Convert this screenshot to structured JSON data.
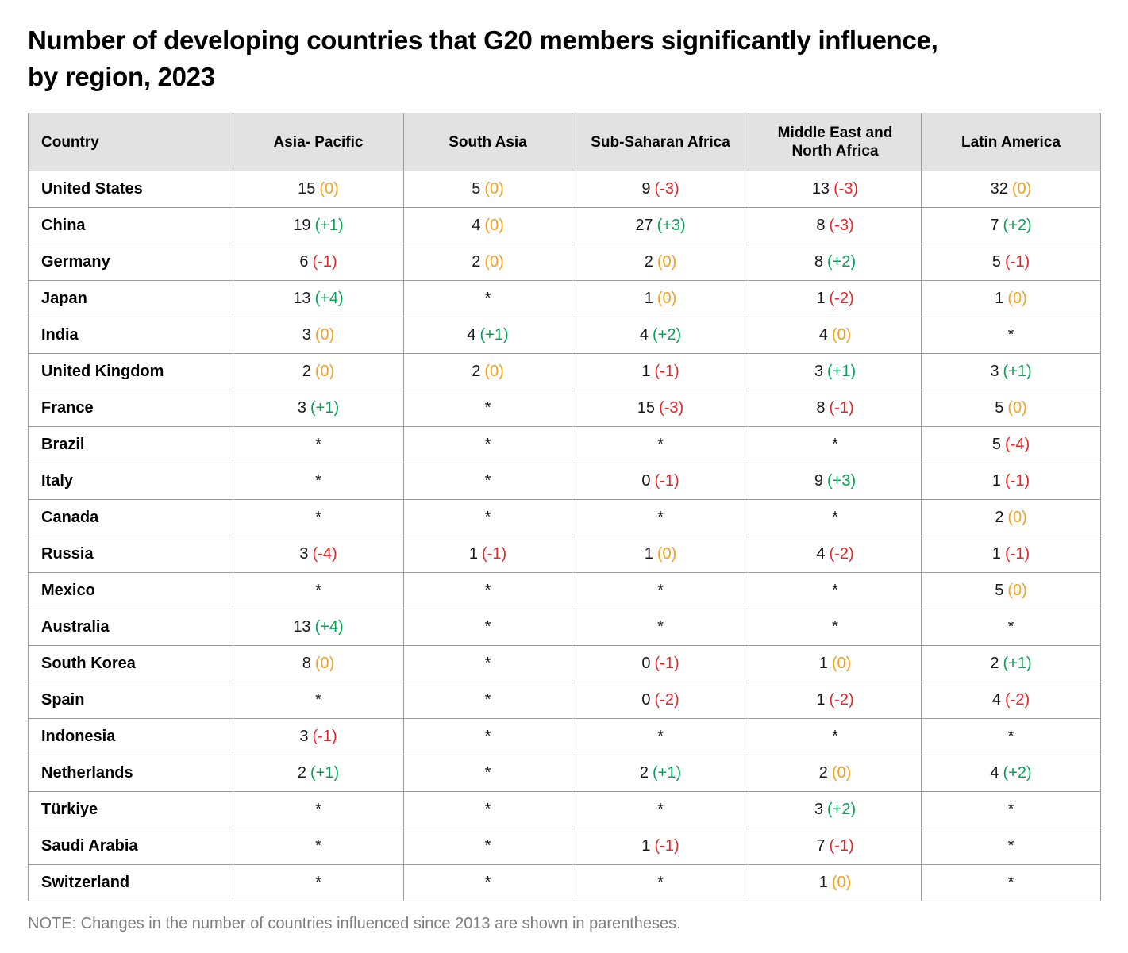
{
  "header": {
    "title_line1": "Number of developing countries that G20 members significantly influence,",
    "title_line2": "by region, 2023"
  },
  "note": "NOTE: Changes in the number of countries influenced since 2013 are shown in parentheses.",
  "colors": {
    "positive": "#00a551",
    "negative": "#ec2427",
    "zero": "#f5a01b",
    "header_bg": "#e2e2e2",
    "border": "#9b9b9b",
    "note_text": "#7d7d7d"
  },
  "chart_data": {
    "type": "table",
    "title": "Number of developing countries that G20 members significantly influence, by region, 2023",
    "columns": [
      "Country",
      "Asia- Pacific",
      "South Asia",
      "Sub-Saharan Africa",
      "Middle East and North Africa",
      "Latin America"
    ],
    "no_data_symbol": "*",
    "rows": [
      {
        "country": "United States",
        "cells": [
          {
            "v": "15",
            "c": "(0)",
            "t": "zero"
          },
          {
            "v": "5",
            "c": "(0)",
            "t": "zero"
          },
          {
            "v": "9",
            "c": "(-3)",
            "t": "neg"
          },
          {
            "v": "13",
            "c": "(-3)",
            "t": "neg"
          },
          {
            "v": "32",
            "c": "(0)",
            "t": "zero"
          }
        ]
      },
      {
        "country": "China",
        "cells": [
          {
            "v": "19",
            "c": "(+1)",
            "t": "pos"
          },
          {
            "v": "4",
            "c": "(0)",
            "t": "zero"
          },
          {
            "v": "27",
            "c": "(+3)",
            "t": "pos"
          },
          {
            "v": "8",
            "c": "(-3)",
            "t": "neg"
          },
          {
            "v": "7",
            "c": "(+2)",
            "t": "pos"
          }
        ]
      },
      {
        "country": "Germany",
        "cells": [
          {
            "v": "6",
            "c": "(-1)",
            "t": "neg"
          },
          {
            "v": "2",
            "c": "(0)",
            "t": "zero"
          },
          {
            "v": "2",
            "c": "(0)",
            "t": "zero"
          },
          {
            "v": "8",
            "c": "(+2)",
            "t": "pos"
          },
          {
            "v": "5",
            "c": "(-1)",
            "t": "neg"
          }
        ]
      },
      {
        "country": "Japan",
        "cells": [
          {
            "v": "13",
            "c": "(+4)",
            "t": "pos"
          },
          {
            "v": "*"
          },
          {
            "v": "1",
            "c": "(0)",
            "t": "zero"
          },
          {
            "v": "1",
            "c": "(-2)",
            "t": "neg"
          },
          {
            "v": "1",
            "c": "(0)",
            "t": "zero"
          }
        ]
      },
      {
        "country": "India",
        "cells": [
          {
            "v": "3",
            "c": "(0)",
            "t": "zero"
          },
          {
            "v": "4",
            "c": "(+1)",
            "t": "pos"
          },
          {
            "v": "4",
            "c": "(+2)",
            "t": "pos"
          },
          {
            "v": "4",
            "c": "(0)",
            "t": "zero"
          },
          {
            "v": "*"
          }
        ]
      },
      {
        "country": "United Kingdom",
        "cells": [
          {
            "v": "2",
            "c": "(0)",
            "t": "zero"
          },
          {
            "v": "2",
            "c": "(0)",
            "t": "zero"
          },
          {
            "v": "1",
            "c": "(-1)",
            "t": "neg"
          },
          {
            "v": "3",
            "c": "(+1)",
            "t": "pos"
          },
          {
            "v": "3",
            "c": "(+1)",
            "t": "pos"
          }
        ]
      },
      {
        "country": "France",
        "cells": [
          {
            "v": "3",
            "c": "(+1)",
            "t": "pos"
          },
          {
            "v": "*"
          },
          {
            "v": "15",
            "c": "(-3)",
            "t": "neg"
          },
          {
            "v": "8",
            "c": "(-1)",
            "t": "neg"
          },
          {
            "v": "5",
            "c": "(0)",
            "t": "zero"
          }
        ]
      },
      {
        "country": "Brazil",
        "cells": [
          {
            "v": "*"
          },
          {
            "v": "*"
          },
          {
            "v": "*"
          },
          {
            "v": "*"
          },
          {
            "v": "5",
            "c": "(-4)",
            "t": "neg"
          }
        ]
      },
      {
        "country": "Italy",
        "cells": [
          {
            "v": "*"
          },
          {
            "v": "*"
          },
          {
            "v": "0",
            "c": "(-1)",
            "t": "neg"
          },
          {
            "v": "9",
            "c": "(+3)",
            "t": "pos"
          },
          {
            "v": "1",
            "c": "(-1)",
            "t": "neg"
          }
        ]
      },
      {
        "country": "Canada",
        "cells": [
          {
            "v": "*"
          },
          {
            "v": "*"
          },
          {
            "v": "*"
          },
          {
            "v": "*"
          },
          {
            "v": "2",
            "c": "(0)",
            "t": "zero"
          }
        ]
      },
      {
        "country": "Russia",
        "cells": [
          {
            "v": "3",
            "c": "(-4)",
            "t": "neg"
          },
          {
            "v": "1",
            "c": "(-1)",
            "t": "neg"
          },
          {
            "v": "1",
            "c": "(0)",
            "t": "zero"
          },
          {
            "v": "4",
            "c": "(-2)",
            "t": "neg"
          },
          {
            "v": "1",
            "c": "(-1)",
            "t": "neg"
          }
        ]
      },
      {
        "country": "Mexico",
        "cells": [
          {
            "v": "*"
          },
          {
            "v": "*"
          },
          {
            "v": "*"
          },
          {
            "v": "*"
          },
          {
            "v": "5",
            "c": "(0)",
            "t": "zero"
          }
        ]
      },
      {
        "country": "Australia",
        "cells": [
          {
            "v": "13",
            "c": "(+4)",
            "t": "pos"
          },
          {
            "v": "*"
          },
          {
            "v": "*"
          },
          {
            "v": "*"
          },
          {
            "v": "*"
          }
        ]
      },
      {
        "country": "South Korea",
        "cells": [
          {
            "v": "8",
            "c": "(0)",
            "t": "zero"
          },
          {
            "v": "*"
          },
          {
            "v": "0",
            "c": "(-1)",
            "t": "neg"
          },
          {
            "v": "1",
            "c": "(0)",
            "t": "zero"
          },
          {
            "v": "2",
            "c": "(+1)",
            "t": "pos"
          }
        ]
      },
      {
        "country": "Spain",
        "cells": [
          {
            "v": "*"
          },
          {
            "v": "*"
          },
          {
            "v": "0",
            "c": "(-2)",
            "t": "neg"
          },
          {
            "v": "1",
            "c": "(-2)",
            "t": "neg"
          },
          {
            "v": "4",
            "c": "(-2)",
            "t": "neg"
          }
        ]
      },
      {
        "country": "Indonesia",
        "cells": [
          {
            "v": "3",
            "c": "(-1)",
            "t": "neg"
          },
          {
            "v": "*"
          },
          {
            "v": "*"
          },
          {
            "v": "*"
          },
          {
            "v": "*"
          }
        ]
      },
      {
        "country": "Netherlands",
        "cells": [
          {
            "v": "2",
            "c": "(+1)",
            "t": "pos"
          },
          {
            "v": "*"
          },
          {
            "v": "2",
            "c": "(+1)",
            "t": "pos"
          },
          {
            "v": "2",
            "c": "(0)",
            "t": "zero"
          },
          {
            "v": "4",
            "c": "(+2)",
            "t": "pos"
          }
        ]
      },
      {
        "country": "Türkiye",
        "cells": [
          {
            "v": "*"
          },
          {
            "v": "*"
          },
          {
            "v": "*"
          },
          {
            "v": "3",
            "c": "(+2)",
            "t": "pos"
          },
          {
            "v": "*"
          }
        ]
      },
      {
        "country": "Saudi Arabia",
        "cells": [
          {
            "v": "*"
          },
          {
            "v": "*"
          },
          {
            "v": "1",
            "c": "(-1)",
            "t": "neg"
          },
          {
            "v": "7",
            "c": "(-1)",
            "t": "neg"
          },
          {
            "v": "*"
          }
        ]
      },
      {
        "country": "Switzerland",
        "cells": [
          {
            "v": "*"
          },
          {
            "v": "*"
          },
          {
            "v": "*"
          },
          {
            "v": "1",
            "c": "(0)",
            "t": "zero"
          },
          {
            "v": "*"
          }
        ]
      }
    ]
  }
}
